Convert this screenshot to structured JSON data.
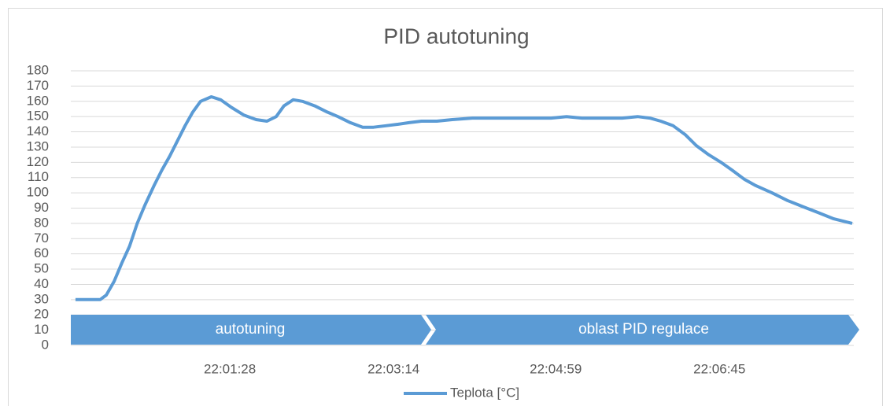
{
  "chart_data": {
    "type": "line",
    "title": "PID autotuning",
    "annotations": [
      "autotuning",
      "oblast PID regulace"
    ],
    "x": [
      79188,
      79204,
      79208,
      79213,
      79218,
      79223,
      79228,
      79233,
      79239,
      79244,
      79249,
      79254,
      79259,
      79264,
      79269,
      79276,
      79282,
      79289,
      79297,
      79305,
      79312,
      79318,
      79323,
      79329,
      79335,
      79343,
      79351,
      79358,
      79366,
      79374,
      79381,
      79389,
      79397,
      79404,
      79412,
      79422,
      79432,
      79445,
      79496,
      79506,
      79516,
      79542,
      79552,
      79560,
      79567,
      79575,
      79583,
      79590,
      79598,
      79606,
      79613,
      79621,
      79628,
      79639,
      79649,
      79659,
      79669,
      79679,
      79691
    ],
    "series": [
      {
        "name": "Teplota [°C]",
        "color": "#5b9bd5",
        "values": [
          30,
          30,
          33,
          42,
          54,
          65,
          80,
          92,
          105,
          115,
          124,
          134,
          144,
          153,
          160,
          163,
          161,
          156,
          151,
          148,
          147,
          150,
          157,
          161,
          160,
          157,
          153,
          150,
          146,
          143,
          143,
          144,
          145,
          146,
          147,
          147,
          148,
          149,
          149,
          150,
          149,
          149,
          150,
          149,
          147,
          144,
          138,
          131,
          125,
          120,
          115,
          109,
          105,
          100,
          95,
          91,
          87,
          83,
          80
        ]
      }
    ],
    "xlim": [
      79185,
      79692
    ],
    "xticks": [
      {
        "value": 79288,
        "label": "22:01:28"
      },
      {
        "value": 79394,
        "label": "22:03:14"
      },
      {
        "value": 79499,
        "label": "22:04:59"
      },
      {
        "value": 79605,
        "label": "22:06:45"
      }
    ],
    "ylim": [
      0,
      180
    ],
    "yticks": [
      0,
      10,
      20,
      30,
      40,
      50,
      60,
      70,
      80,
      90,
      100,
      110,
      120,
      130,
      140,
      150,
      160,
      170,
      180
    ],
    "grid": true,
    "legend": "bottom"
  }
}
